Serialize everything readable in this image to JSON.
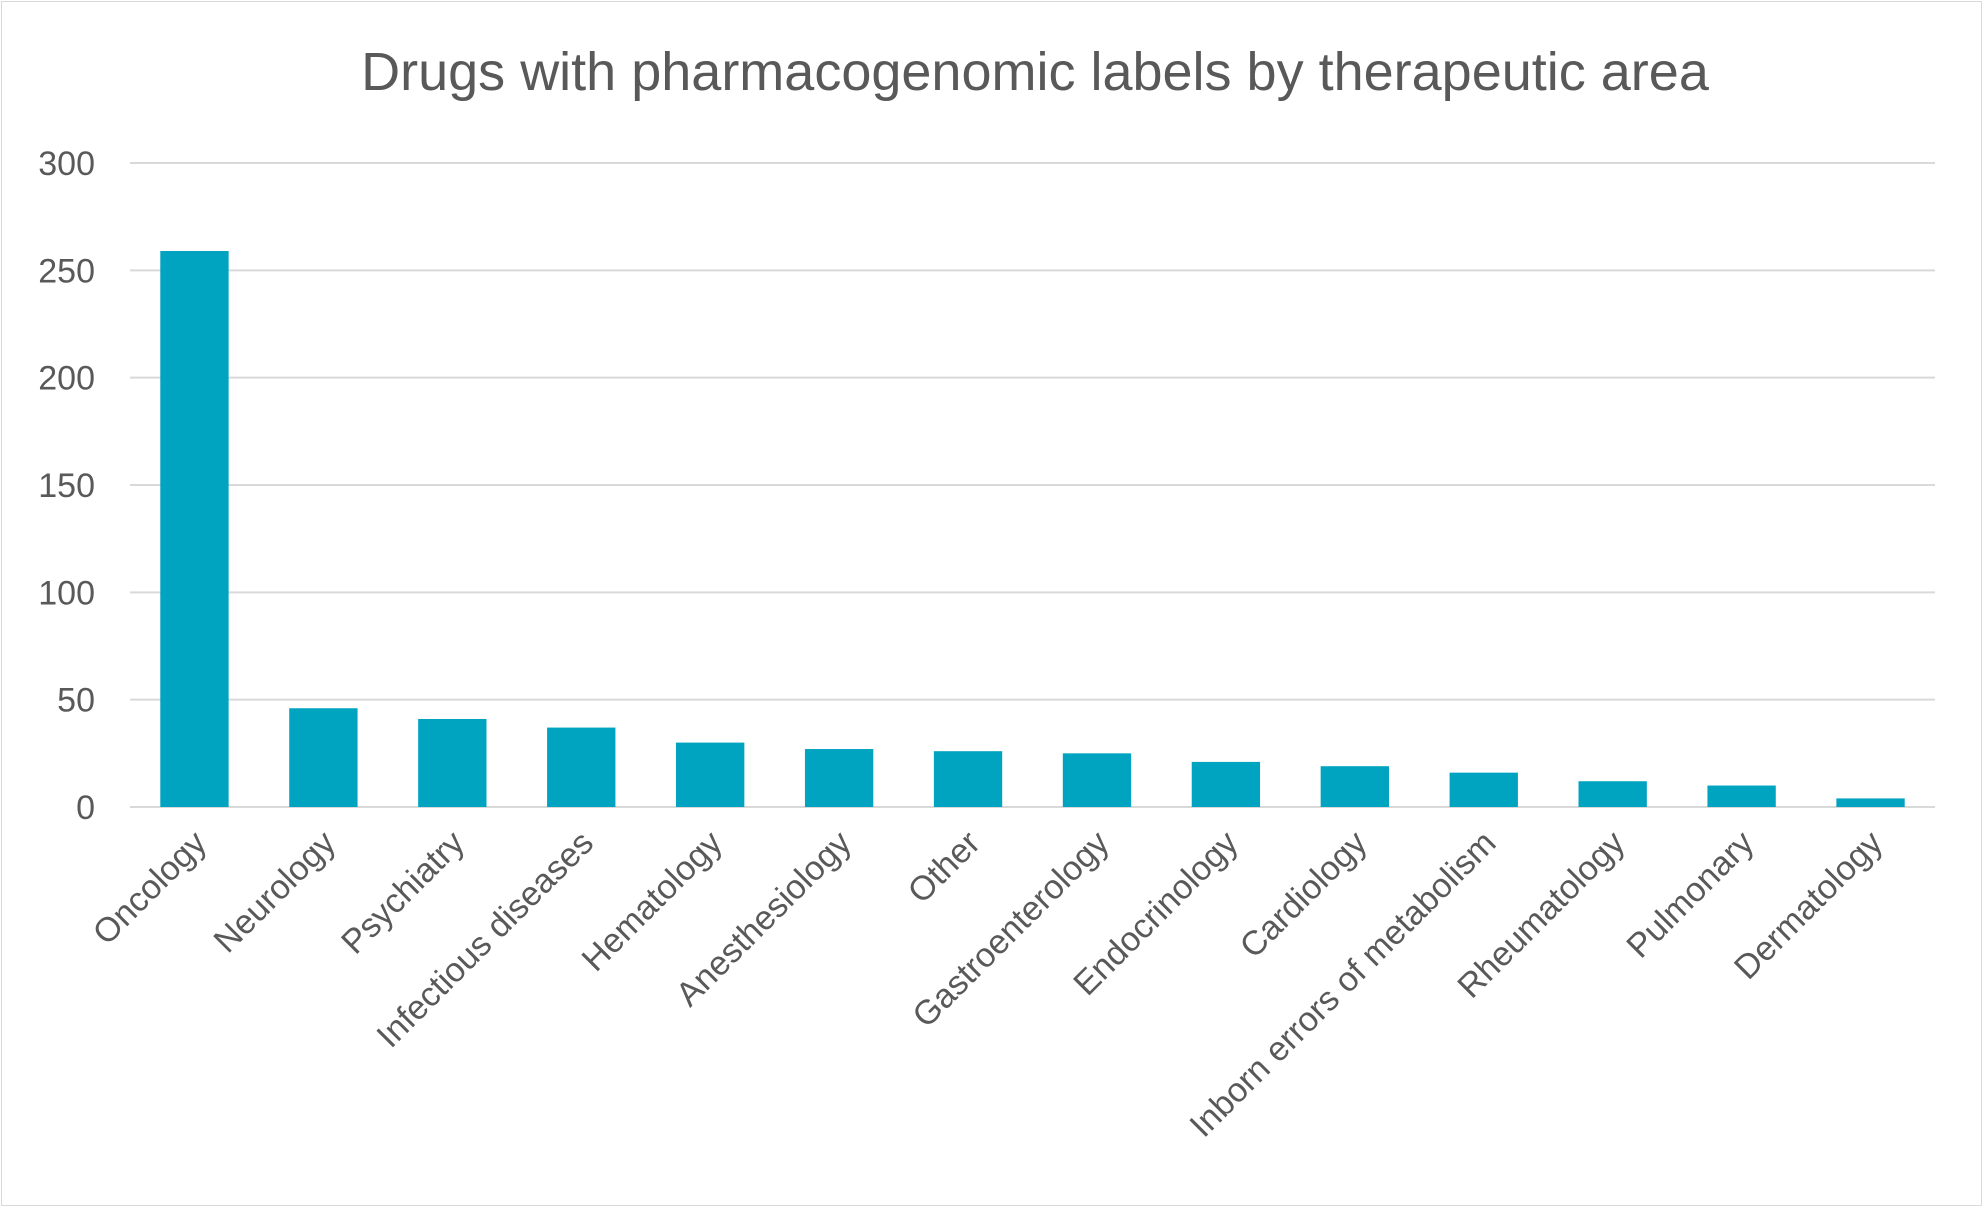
{
  "chart_data": {
    "type": "bar",
    "title": "Drugs with pharmacogenomic labels by therapeutic area",
    "xlabel": "",
    "ylabel": "",
    "categories": [
      "Oncology",
      "Neurology",
      "Psychiatry",
      "Infectious diseases",
      "Hematology",
      "Anesthesiology",
      "Other",
      "Gastroenterology",
      "Endocrinology",
      "Cardiology",
      "Inborn errors of metabolism",
      "Rheumatology",
      "Pulmonary",
      "Dermatology"
    ],
    "values": [
      259,
      46,
      41,
      37,
      30,
      27,
      26,
      25,
      21,
      19,
      16,
      12,
      10,
      4
    ],
    "ylim": [
      0,
      300
    ],
    "yticks": [
      0,
      50,
      100,
      150,
      200,
      250,
      300
    ],
    "grid": true,
    "legend": "none",
    "bar_color": "#00a3c0",
    "grid_color": "#d9d9d9",
    "text_color": "#595959"
  }
}
